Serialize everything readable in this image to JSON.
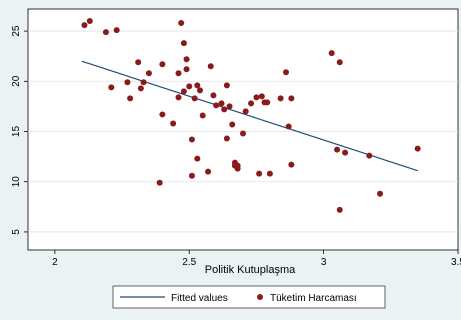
{
  "chart_data": {
    "type": "scatter",
    "xlabel": "Politik Kutuplaşma",
    "ylabel": "",
    "xlim": [
      2,
      3.5
    ],
    "ylim": [
      5,
      26
    ],
    "xticks": [
      2,
      2.5,
      3,
      3.5
    ],
    "yticks": [
      5,
      10,
      15,
      20,
      25
    ],
    "xtick_labels": [
      "2",
      "2.5",
      "3",
      "3.5"
    ],
    "ytick_labels": [
      "5",
      "10",
      "15",
      "20",
      "25"
    ],
    "grid": "horizontal",
    "legend_position": "bottom",
    "series": [
      {
        "name": "Fitted values",
        "type": "line",
        "color": "#1f4e79",
        "x": [
          2.1,
          3.35
        ],
        "y": [
          22.0,
          11.1
        ]
      },
      {
        "name": "Tüketim Harcaması",
        "type": "scatter",
        "color": "#8b1a1a",
        "x": [
          2.11,
          2.13,
          2.19,
          2.23,
          2.21,
          2.27,
          2.28,
          2.31,
          2.32,
          2.33,
          2.35,
          2.4,
          2.39,
          2.4,
          2.44,
          2.46,
          2.46,
          2.47,
          2.48,
          2.48,
          2.49,
          2.49,
          2.5,
          2.51,
          2.51,
          2.52,
          2.53,
          2.53,
          2.54,
          2.55,
          2.57,
          2.58,
          2.59,
          2.6,
          2.62,
          2.63,
          2.64,
          2.64,
          2.65,
          2.66,
          2.67,
          2.67,
          2.68,
          2.68,
          2.7,
          2.71,
          2.73,
          2.75,
          2.76,
          2.77,
          2.78,
          2.79,
          2.8,
          2.84,
          2.86,
          2.87,
          2.88,
          2.88,
          3.03,
          3.05,
          3.06,
          3.06,
          3.08,
          3.17,
          3.21,
          3.35
        ],
        "y": [
          25.6,
          26.0,
          24.9,
          25.1,
          19.4,
          19.9,
          18.3,
          21.9,
          19.3,
          19.9,
          20.8,
          21.7,
          9.9,
          16.7,
          15.8,
          20.8,
          18.4,
          25.8,
          23.8,
          19.0,
          22.2,
          21.2,
          19.5,
          10.6,
          14.2,
          18.3,
          12.3,
          19.6,
          19.1,
          16.6,
          11.0,
          21.5,
          18.6,
          17.6,
          17.8,
          17.2,
          19.6,
          14.3,
          17.5,
          15.7,
          11.6,
          11.9,
          11.6,
          11.3,
          14.8,
          17.0,
          17.8,
          18.4,
          10.8,
          18.5,
          17.9,
          17.9,
          10.8,
          18.3,
          20.9,
          15.5,
          11.7,
          18.3,
          22.8,
          13.2,
          7.2,
          21.9,
          12.9,
          12.6,
          8.8,
          13.3
        ]
      }
    ]
  }
}
